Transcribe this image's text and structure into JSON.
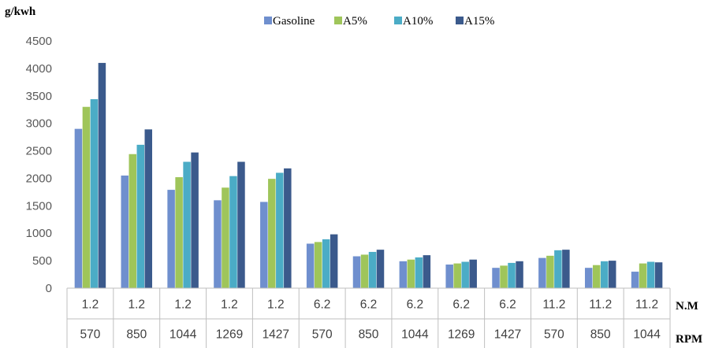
{
  "chart_data": {
    "type": "bar",
    "ylabel": "g/kwh",
    "ylim": [
      0,
      4500
    ],
    "yticks": [
      0,
      500,
      1000,
      1500,
      2000,
      2500,
      3000,
      3500,
      4000,
      4500
    ],
    "grid": false,
    "legend_position": "top",
    "category_rows": [
      {
        "label": "N.M",
        "values": [
          "1.2",
          "1.2",
          "1.2",
          "1.2",
          "1.2",
          "6.2",
          "6.2",
          "6.2",
          "6.2",
          "6.2",
          "11.2",
          "11.2",
          "11.2"
        ]
      },
      {
        "label": "RPM",
        "values": [
          "570",
          "850",
          "1044",
          "1269",
          "1427",
          "570",
          "850",
          "1044",
          "1269",
          "1427",
          "570",
          "850",
          "1044"
        ]
      }
    ],
    "series": [
      {
        "name": "Gasoline",
        "color": "#6f8fce",
        "values": [
          2900,
          2050,
          1790,
          1600,
          1570,
          810,
          580,
          490,
          430,
          370,
          550,
          370,
          300
        ]
      },
      {
        "name": "A5%",
        "color": "#9fc55a",
        "values": [
          3300,
          2440,
          2020,
          1830,
          1990,
          840,
          610,
          520,
          450,
          410,
          590,
          420,
          450
        ]
      },
      {
        "name": "A10%",
        "color": "#4bacc6",
        "values": [
          3440,
          2610,
          2300,
          2040,
          2100,
          890,
          660,
          560,
          480,
          460,
          690,
          490,
          480
        ]
      },
      {
        "name": "A15%",
        "color": "#3b5a8c",
        "values": [
          4100,
          2890,
          2470,
          2300,
          2180,
          980,
          700,
          600,
          520,
          490,
          700,
          500,
          470
        ]
      }
    ]
  }
}
